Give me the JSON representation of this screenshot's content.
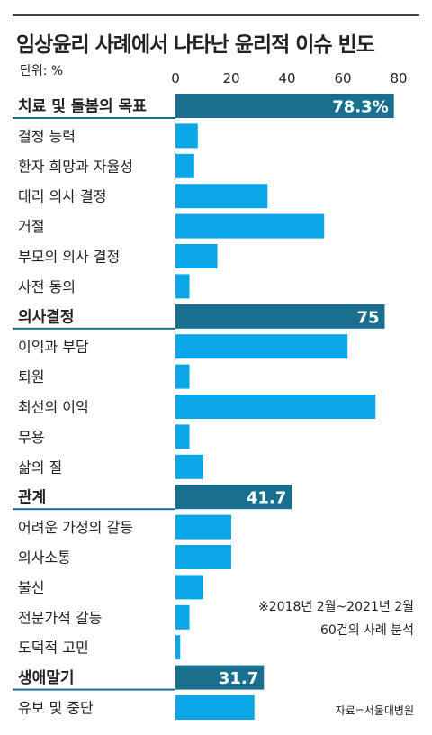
{
  "title": "임상윤리 사례에서 나타난 윤리적 이슈 빈도",
  "unit_label": "단위: %",
  "note_lines": [
    "※2018년 2월~2021년 2월",
    "60건의 사례 분석"
  ],
  "source": "자료=서울대병원",
  "colors": {
    "primary": "#1a6f8f",
    "secondary": "#0aa6e6"
  },
  "chart_data": {
    "type": "bar",
    "orientation": "horizontal",
    "xlim": [
      0,
      80
    ],
    "ticks": [
      "0",
      "20",
      "40",
      "60",
      "80"
    ],
    "grid": false,
    "rows": [
      {
        "label": "치료 및 돌봄의 목표",
        "value": 78.3,
        "display": "78.3%",
        "group": true
      },
      {
        "label": "결정 능력",
        "value": 8
      },
      {
        "label": "환자 희망과 자율성",
        "value": 6.7
      },
      {
        "label": "대리 의사 결정",
        "value": 33
      },
      {
        "label": "거절",
        "value": 53.3
      },
      {
        "label": "부모의 의사 결정",
        "value": 15
      },
      {
        "label": "사전 동의",
        "value": 5
      },
      {
        "label": "의사결정",
        "value": 75,
        "display": "75",
        "group": true
      },
      {
        "label": "이익과 부담",
        "value": 61.7
      },
      {
        "label": "퇴원",
        "value": 5
      },
      {
        "label": "최선의 이익",
        "value": 71.7
      },
      {
        "label": "무용",
        "value": 5
      },
      {
        "label": "삶의 질",
        "value": 10
      },
      {
        "label": "관계",
        "value": 41.7,
        "display": "41.7",
        "group": true
      },
      {
        "label": "어려운 가정의 갈등",
        "value": 20
      },
      {
        "label": "의사소통",
        "value": 20
      },
      {
        "label": "불신",
        "value": 10
      },
      {
        "label": "전문가적 갈등",
        "value": 5
      },
      {
        "label": "도덕적 고민",
        "value": 1.7
      },
      {
        "label": "생애말기",
        "value": 31.7,
        "display": "31.7",
        "group": true
      },
      {
        "label": "유보 및 중단",
        "value": 28.3
      }
    ]
  }
}
